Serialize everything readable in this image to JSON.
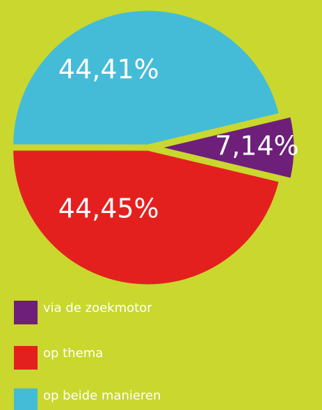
{
  "chart_data": {
    "type": "pie",
    "categories": [
      "via de zoekmotor",
      "op thema",
      "op beide manieren"
    ],
    "values": [
      7.14,
      44.45,
      44.41
    ],
    "value_labels": [
      "7,14%",
      "44,45%",
      "44,41%"
    ],
    "colors": [
      "#6e1f7a",
      "#e4201f",
      "#44bcd8"
    ],
    "legend": "bottom-left"
  }
}
